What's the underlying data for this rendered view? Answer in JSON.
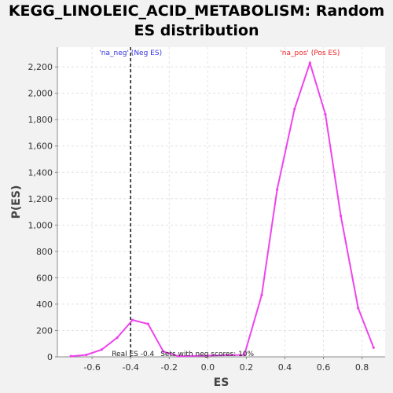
{
  "chart_data": {
    "type": "line",
    "title": "KEGG_LINOLEIC_ACID_METABOLISM: Random ES distribution",
    "xlabel": "ES",
    "ylabel": "P(ES)",
    "xlim": [
      -0.78,
      0.92
    ],
    "ylim": [
      0,
      2350
    ],
    "x_ticks": [
      -0.6,
      -0.4,
      -0.2,
      0.0,
      0.2,
      0.4,
      0.6,
      0.8
    ],
    "x_tick_labels": [
      "-0.6",
      "-0.4",
      "-0.2",
      "0.0",
      "0.2",
      "0.4",
      "0.6",
      "0.8"
    ],
    "y_ticks": [
      0,
      200,
      400,
      600,
      800,
      1000,
      1200,
      1400,
      1600,
      1800,
      2000,
      2200
    ],
    "y_tick_labels": [
      "0",
      "200",
      "400",
      "600",
      "800",
      "1,000",
      "1,200",
      "1,400",
      "1,600",
      "1,800",
      "2,000",
      "2,200"
    ],
    "grid": true,
    "series": [
      {
        "x": [
          -0.71,
          -0.63,
          -0.55,
          -0.47,
          -0.39,
          -0.31,
          -0.23,
          -0.15,
          0.19,
          0.28,
          0.36,
          0.45,
          0.53,
          0.61,
          0.69,
          0.78,
          0.86
        ],
        "y": [
          5,
          15,
          55,
          145,
          280,
          250,
          40,
          5,
          15,
          470,
          1270,
          1880,
          2230,
          1840,
          1070,
          370,
          70
        ],
        "color": "#ee44ee"
      }
    ],
    "annotations": {
      "real_es": {
        "x": -0.4,
        "label": "Real ES -0.4"
      },
      "sets_label": "Sets with neg scores: 10%",
      "neg_label": "'na_neg' (Neg ES)",
      "pos_label": "'na_pos' (Pos ES)",
      "neg_color": "#3333dd",
      "pos_color": "#ee2222"
    }
  }
}
